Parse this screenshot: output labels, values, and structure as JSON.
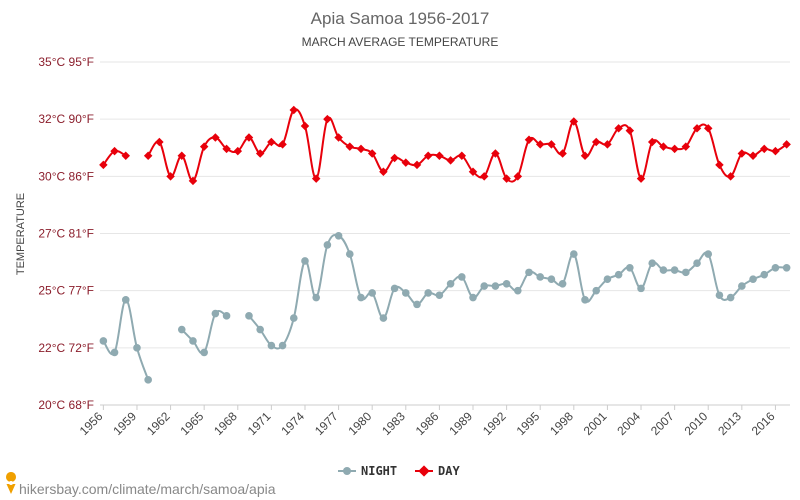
{
  "chart_data": {
    "type": "line",
    "title": "Apia Samoa 1956-2017",
    "subtitle": "MARCH AVERAGE TEMPERATURE",
    "ylabel": "TEMPERATURE",
    "ylim": [
      20,
      35
    ],
    "y_ticks": [
      {
        "value": 20,
        "label": "20°C 68°F"
      },
      {
        "value": 22.5,
        "label": "22°C 72°F"
      },
      {
        "value": 25,
        "label": "25°C 77°F"
      },
      {
        "value": 27.5,
        "label": "27°C 81°F"
      },
      {
        "value": 30,
        "label": "30°C 86°F"
      },
      {
        "value": 32.5,
        "label": "32°C 90°F"
      },
      {
        "value": 35,
        "label": "35°C 95°F"
      }
    ],
    "x_ticks": [
      1956,
      1959,
      1962,
      1965,
      1968,
      1971,
      1974,
      1977,
      1980,
      1983,
      1986,
      1989,
      1992,
      1995,
      1998,
      2001,
      2004,
      2007,
      2010,
      2013,
      2016
    ],
    "xlim": [
      1955.7,
      2017.3
    ],
    "legend": {
      "placement": "bottom"
    },
    "grid": true,
    "series": [
      {
        "name": "NIGHT",
        "color": "#8faab1",
        "marker": "circle",
        "x": [
          1956,
          1957,
          1958,
          1959,
          1960,
          1963,
          1964,
          1965,
          1966,
          1967,
          1969,
          1970,
          1971,
          1972,
          1973,
          1974,
          1975,
          1976,
          1977,
          1978,
          1979,
          1980,
          1981,
          1982,
          1983,
          1984,
          1985,
          1986,
          1987,
          1988,
          1989,
          1990,
          1991,
          1992,
          1993,
          1994,
          1995,
          1996,
          1997,
          1998,
          1999,
          2000,
          2001,
          2002,
          2003,
          2004,
          2005,
          2006,
          2007,
          2008,
          2009,
          2010,
          2011,
          2012,
          2013,
          2014,
          2015,
          2016,
          2017
        ],
        "values": [
          22.8,
          22.3,
          24.6,
          22.5,
          21.1,
          23.3,
          22.8,
          22.3,
          24.0,
          23.9,
          23.9,
          23.3,
          22.6,
          22.6,
          23.8,
          26.3,
          24.7,
          27.0,
          27.4,
          26.6,
          24.7,
          24.9,
          23.8,
          25.1,
          24.9,
          24.4,
          24.9,
          24.8,
          25.3,
          25.6,
          24.7,
          25.2,
          25.2,
          25.3,
          25.0,
          25.8,
          25.6,
          25.5,
          25.3,
          26.6,
          24.6,
          25.0,
          25.5,
          25.7,
          26.0,
          25.1,
          26.2,
          25.9,
          25.9,
          25.8,
          26.2,
          26.6,
          24.8,
          24.7,
          25.2,
          25.5,
          25.7,
          26.0,
          26.0
        ]
      },
      {
        "name": "DAY",
        "color": "#e8000b",
        "marker": "diamond",
        "x": [
          1956,
          1957,
          1958,
          1960,
          1961,
          1962,
          1963,
          1964,
          1965,
          1966,
          1967,
          1968,
          1969,
          1970,
          1971,
          1972,
          1973,
          1974,
          1975,
          1976,
          1977,
          1978,
          1979,
          1980,
          1981,
          1982,
          1983,
          1984,
          1985,
          1986,
          1987,
          1988,
          1989,
          1990,
          1991,
          1992,
          1993,
          1994,
          1995,
          1996,
          1997,
          1998,
          1999,
          2000,
          2001,
          2002,
          2003,
          2004,
          2005,
          2006,
          2007,
          2008,
          2009,
          2010,
          2011,
          2012,
          2013,
          2014,
          2015,
          2016,
          2017
        ],
        "values": [
          30.5,
          31.1,
          30.9,
          30.9,
          31.5,
          30.0,
          30.9,
          29.8,
          31.3,
          31.7,
          31.2,
          31.1,
          31.7,
          31.0,
          31.5,
          31.4,
          32.9,
          32.2,
          29.9,
          32.5,
          31.7,
          31.3,
          31.2,
          31.0,
          30.2,
          30.8,
          30.6,
          30.5,
          30.9,
          30.9,
          30.7,
          30.9,
          30.2,
          30.0,
          31.0,
          29.9,
          30.0,
          31.6,
          31.4,
          31.4,
          31.0,
          32.4,
          30.9,
          31.5,
          31.4,
          32.1,
          32.0,
          29.9,
          31.5,
          31.3,
          31.2,
          31.3,
          32.1,
          32.1,
          30.5,
          30.0,
          31.0,
          30.9,
          31.2,
          31.1,
          31.4
        ]
      }
    ]
  },
  "footer": {
    "url": "hikersbay.com/climate/march/samoa/apia",
    "pin_icon": "map-pin-icon",
    "pin_color": "#f0a000"
  }
}
